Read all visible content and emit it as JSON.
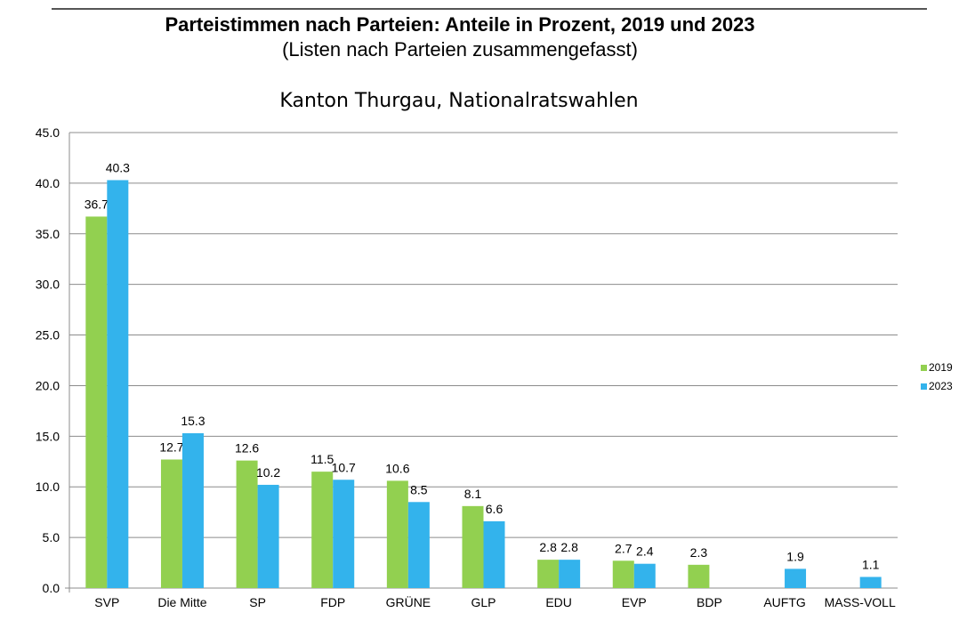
{
  "header": {
    "title": "Parteistimmen nach Parteien: Anteile in Prozent, 2019 und 2023",
    "subtitle": "(Listen nach Parteien zusammengefasst)"
  },
  "chart_data": {
    "type": "bar",
    "title": "Kanton Thurgau, Nationalratswahlen",
    "xlabel": "",
    "ylabel": "",
    "ylim": [
      0,
      45
    ],
    "yticks": [
      "0.0",
      "5.0",
      "10.0",
      "15.0",
      "20.0",
      "25.0",
      "30.0",
      "35.0",
      "40.0",
      "45.0"
    ],
    "grid": true,
    "legend_position": "right",
    "categories": [
      "SVP",
      "Die Mitte",
      "SP",
      "FDP",
      "GRÜNE",
      "GLP",
      "EDU",
      "EVP",
      "BDP",
      "AUFTG",
      "MASS-VOLL"
    ],
    "series": [
      {
        "name": "2019",
        "color": "#92d050",
        "values": [
          36.7,
          12.7,
          12.6,
          11.5,
          10.6,
          8.1,
          2.8,
          2.7,
          2.3,
          null,
          null
        ],
        "labels": [
          "36.7",
          "12.7",
          "12.6",
          "11.5",
          "10.6",
          "8.1",
          "2.8",
          "2.7",
          "2.3",
          null,
          null
        ]
      },
      {
        "name": "2023",
        "color": "#33b3ec",
        "values": [
          40.3,
          15.3,
          10.2,
          10.7,
          8.5,
          6.6,
          2.8,
          2.4,
          null,
          1.9,
          1.1
        ],
        "labels": [
          "40.3",
          "15.3",
          "10.2",
          "10.7",
          "8.5",
          "6.6",
          "2.8",
          "2.4",
          null,
          "1.9",
          "1.1"
        ]
      }
    ]
  }
}
